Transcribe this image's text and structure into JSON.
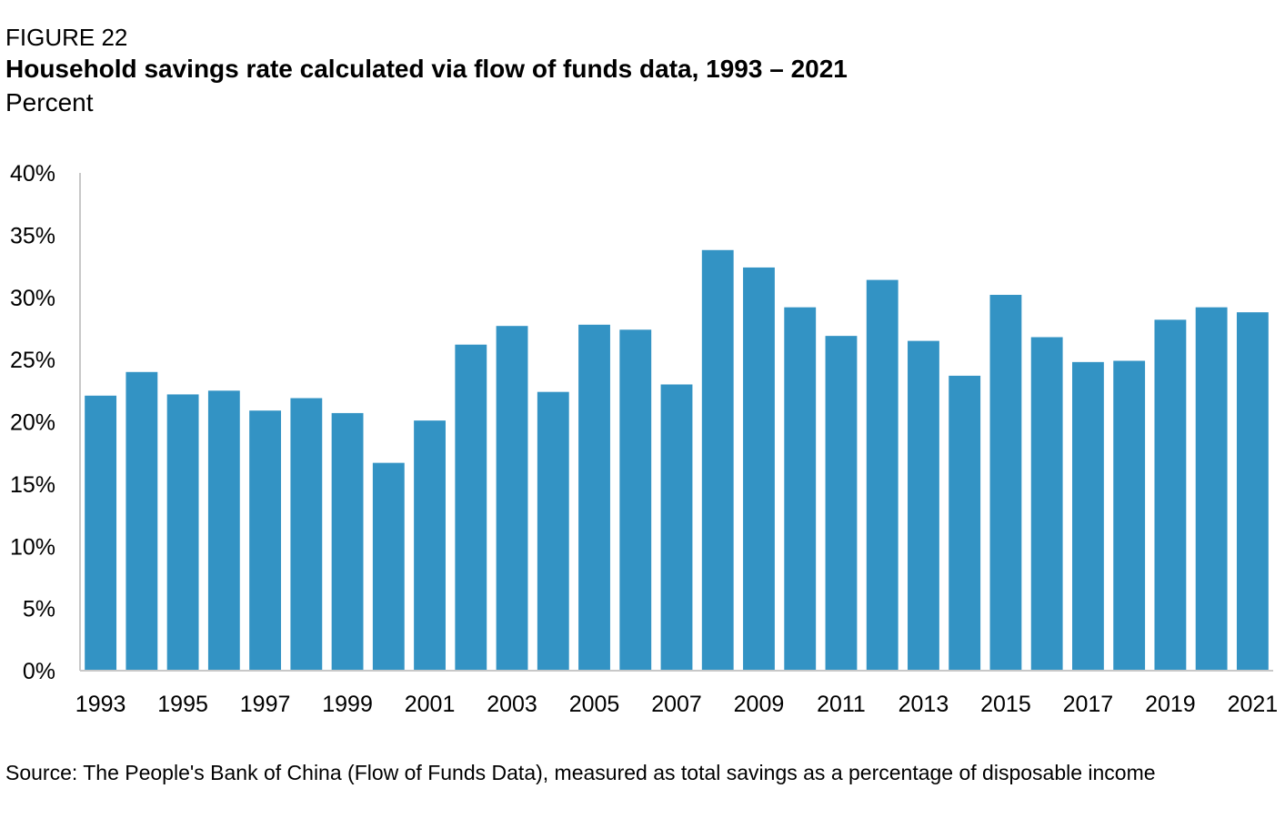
{
  "figure_label": "FIGURE 22",
  "title": "Household savings rate calculated via flow of funds data, 1993 – 2021",
  "subtitle": "Percent",
  "source": "Source: The People's Bank of China (Flow of Funds Data), measured as total savings as a percentage of disposable income",
  "colors": {
    "bar": "#3393c4",
    "axis": "#c8c8c8"
  },
  "chart_data": {
    "type": "bar",
    "categories": [
      "1993",
      "1994",
      "1995",
      "1996",
      "1997",
      "1998",
      "1999",
      "2000",
      "2001",
      "2002",
      "2003",
      "2004",
      "2005",
      "2006",
      "2007",
      "2008",
      "2009",
      "2010",
      "2011",
      "2012",
      "2013",
      "2014",
      "2015",
      "2016",
      "2017",
      "2018",
      "2019",
      "2020",
      "2021"
    ],
    "values": [
      22.1,
      24.0,
      22.2,
      22.5,
      20.9,
      21.9,
      20.7,
      16.7,
      20.1,
      26.2,
      27.7,
      22.4,
      27.8,
      27.4,
      23.0,
      33.8,
      32.4,
      29.2,
      26.9,
      31.4,
      26.5,
      23.7,
      30.2,
      26.8,
      24.8,
      24.9,
      28.2,
      29.2,
      28.8
    ],
    "x_tick_labels": [
      "1993",
      "1995",
      "1997",
      "1999",
      "2001",
      "2003",
      "2005",
      "2007",
      "2009",
      "2011",
      "2013",
      "2015",
      "2017",
      "2019",
      "2021"
    ],
    "y_tick_labels": [
      "0%",
      "5%",
      "10%",
      "15%",
      "20%",
      "25%",
      "30%",
      "35%",
      "40%"
    ],
    "ylim": [
      0,
      40
    ],
    "y_tick_step": 5,
    "grid": false,
    "legend": "none"
  }
}
